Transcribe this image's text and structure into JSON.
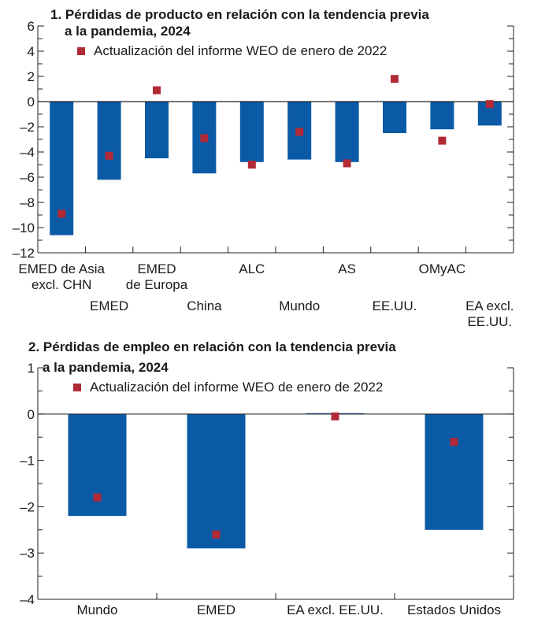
{
  "colors": {
    "bar": "#0b5aa6",
    "marker": "#b22a36",
    "axis": "#222222",
    "text": "#1a1a1a"
  },
  "chart_data": [
    {
      "type": "bar",
      "title_lines": [
        "1. Pérdidas de producto en relación con la tendencia previa",
        "a la pandemia, 2024"
      ],
      "categories": [
        "EMED de Asia excl. CHN",
        "EMED",
        "EMED de Europa",
        "China",
        "ALC",
        "Mundo",
        "AS",
        "EE.UU.",
        "OMyAC",
        "EA excl. EE.UU."
      ],
      "category_label_lines": [
        [
          "EMED de Asia",
          "excl. CHN"
        ],
        [
          "EMED"
        ],
        [
          "EMED",
          "de Europa"
        ],
        [
          "China"
        ],
        [
          "ALC"
        ],
        [
          "Mundo"
        ],
        [
          "AS"
        ],
        [
          "EE.UU."
        ],
        [
          "OMyAC"
        ],
        [
          "EA excl.",
          "EE.UU."
        ]
      ],
      "category_label_row": [
        0,
        1,
        0,
        1,
        0,
        1,
        0,
        1,
        0,
        1
      ],
      "series": [
        {
          "name": "",
          "kind": "bar",
          "values": [
            -10.6,
            -6.2,
            -4.5,
            -5.7,
            -4.8,
            -4.6,
            -4.8,
            -2.5,
            -2.2,
            -1.9
          ]
        },
        {
          "name": "Actualización del informe WEO de enero de 2022",
          "kind": "marker",
          "values": [
            -8.9,
            -4.3,
            0.9,
            -2.9,
            -5.0,
            -2.4,
            -4.9,
            1.8,
            -3.1,
            -0.2
          ]
        }
      ],
      "ylim": [
        -12,
        6
      ],
      "yticks": [
        -12,
        -10,
        -8,
        -6,
        -4,
        -2,
        0,
        2,
        4,
        6
      ],
      "ytick_labels": [
        "–12",
        "–10",
        "–8",
        "–6",
        "–4",
        "–2",
        "0",
        "2",
        "4",
        "6"
      ],
      "legend": "top-left",
      "grid": false
    },
    {
      "type": "bar",
      "title_lines": [
        "2. Pérdidas de empleo en relación con la tendencia previa",
        "a la pandemia, 2024"
      ],
      "categories": [
        "Mundo",
        "EMED",
        "EA excl. EE.UU.",
        "Estados Unidos"
      ],
      "category_label_lines": [
        [
          "Mundo"
        ],
        [
          "EMED"
        ],
        [
          "EA excl. EE.UU."
        ],
        [
          "Estados Unidos"
        ]
      ],
      "category_label_row": [
        0,
        0,
        0,
        0
      ],
      "series": [
        {
          "name": "",
          "kind": "bar",
          "values": [
            -2.2,
            -2.9,
            0.02,
            -2.5
          ]
        },
        {
          "name": "Actualización del informe WEO de enero de 2022",
          "kind": "marker",
          "values": [
            -1.8,
            -2.6,
            -0.05,
            -0.6
          ]
        }
      ],
      "ylim": [
        -4,
        1
      ],
      "yticks": [
        -4,
        -3,
        -2,
        -1,
        0,
        1
      ],
      "ytick_labels": [
        "–4",
        "–3",
        "–2",
        "–1",
        "0",
        "1"
      ],
      "legend": "top-left",
      "grid": false
    }
  ]
}
